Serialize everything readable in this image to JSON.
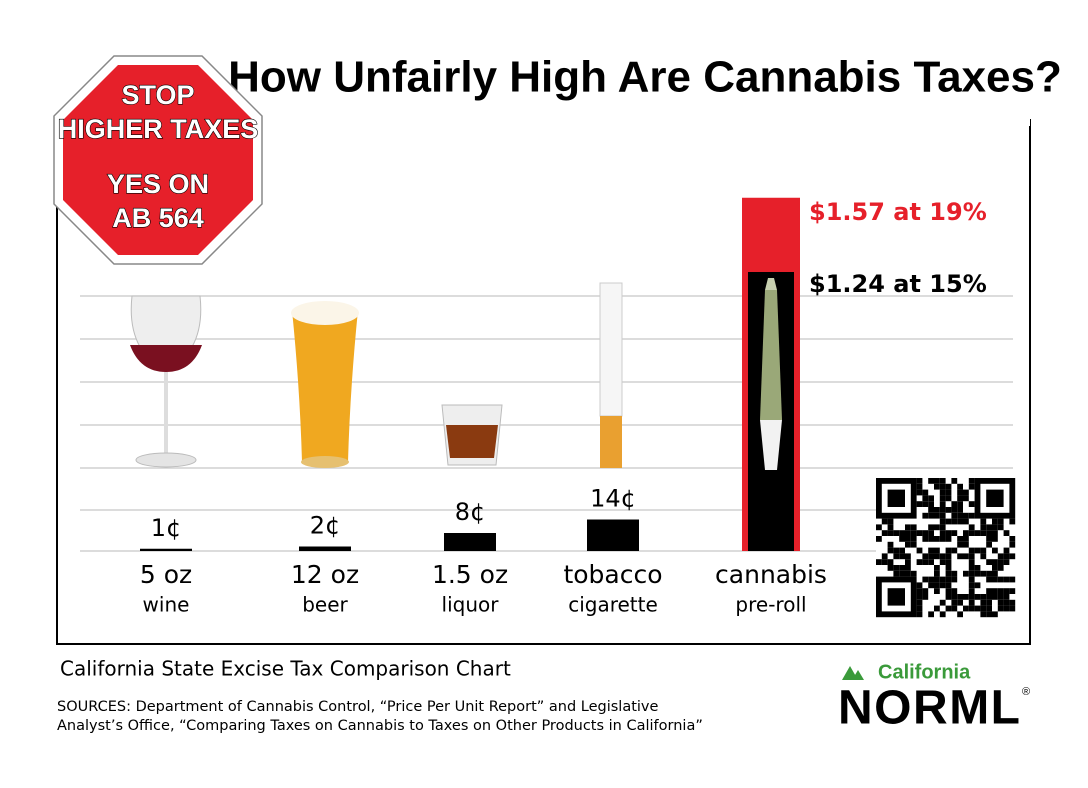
{
  "chart_data": {
    "type": "bar",
    "title": "How Unfairly High Are Cannabis Taxes?",
    "categories": [
      "5 oz",
      "12 oz",
      "1.5 oz",
      "tobacco",
      "cannabis"
    ],
    "subcategories": [
      "wine",
      "beer",
      "liquor",
      "cigarette",
      "pre-roll"
    ],
    "series": [
      {
        "color": "#000000",
        "values": [
          0.01,
          0.02,
          0.08,
          0.14,
          1.24
        ],
        "value_labels": [
          "1¢",
          "2¢",
          "8¢",
          "14¢",
          "$1.24 at 15%"
        ]
      },
      {
        "color": "#e6202a",
        "values": [
          null,
          null,
          null,
          null,
          1.57
        ],
        "value_labels": [
          null,
          null,
          null,
          null,
          "$1.57 at 19%"
        ]
      }
    ]
  },
  "sign": {
    "line1": "STOP",
    "line2": "HIGHER TAXES",
    "line3": "YES ON",
    "line4": "AB 564"
  },
  "caption": "California State Excise Tax Comparison Chart",
  "sources": [
    "SOURCES: Department of Cannabis Control, “Price Per Unit Report” and Legislative",
    "Analyst’s Office, “Comparing Taxes on Cannabis to Taxes on Other Products in California”"
  ],
  "logo": {
    "region": "California",
    "name": "NORML",
    "mark": "®"
  }
}
